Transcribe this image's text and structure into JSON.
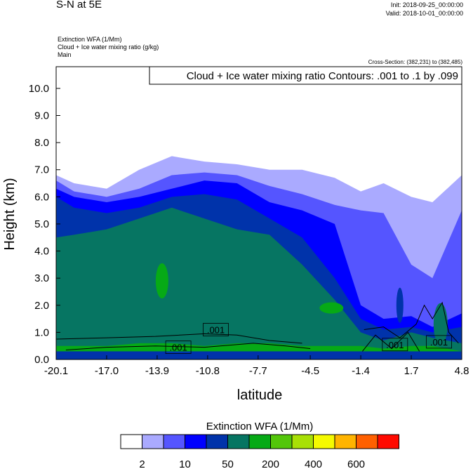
{
  "header": {
    "title": "S-N at 5E",
    "init": "Init: 2018-09-25_00:00:00",
    "valid": "Valid: 2018-10-01_00:00:00",
    "field1": "Extinction WFA   (1/Mm)",
    "field2": "Cloud + Ice water mixing ratio   (g/kg)",
    "field3": "Main",
    "cross_section": "Cross-Section: (382,231) to (382,485)"
  },
  "chart_data": {
    "type": "heatmap",
    "title": "S-N at 5E",
    "contour_label": "Cloud + Ice water mixing ratio Contours: .001 to .1 by .099",
    "xlabel": "latitude",
    "ylabel": "Height (km)",
    "xlim": [
      -20.1,
      4.8
    ],
    "ylim": [
      0,
      10.8
    ],
    "xticks": [
      "-20.1",
      "-17.0",
      "-13.9",
      "-10.8",
      "-7.7",
      "-4.5",
      "-1.4",
      "1.7",
      "4.8"
    ],
    "xtick_values": [
      -20.1,
      -17.0,
      -13.9,
      -10.8,
      -7.7,
      -4.5,
      -1.4,
      1.7,
      4.8
    ],
    "yticks": [
      "0.0",
      "1.0",
      "2.0",
      "3.0",
      "4.0",
      "5.0",
      "6.0",
      "7.0",
      "8.0",
      "9.0",
      "10.0"
    ],
    "ytick_values": [
      0,
      1,
      2,
      3,
      4,
      5,
      6,
      7,
      8,
      9,
      10
    ],
    "sample_latitudes": [
      -20.1,
      -19,
      -17,
      -15,
      -13,
      -11,
      -9,
      -7,
      -5,
      -3,
      -1.4,
      0,
      1.7,
      3,
      4.8
    ],
    "level_tops_km": [
      {
        "level_color": "#aaaaff",
        "tops": [
          6.8,
          6.5,
          6.3,
          7.0,
          7.5,
          7.3,
          7.2,
          7.0,
          7.0,
          6.7,
          6.2,
          6.5,
          6.0,
          5.8,
          6.8
        ]
      },
      {
        "level_color": "#5555ff",
        "tops": [
          6.6,
          6.2,
          6.0,
          6.3,
          6.8,
          6.9,
          6.8,
          6.4,
          6.1,
          5.7,
          5.5,
          5.4,
          3.5,
          3.0,
          5.5
        ]
      },
      {
        "level_color": "#0000ff",
        "tops": [
          6.3,
          6.0,
          5.8,
          6.0,
          6.3,
          6.6,
          6.5,
          5.8,
          5.5,
          5.0,
          2.0,
          1.5,
          1.6,
          1.2,
          1.7
        ]
      },
      {
        "level_color": "#0033aa",
        "tops": [
          6.0,
          5.6,
          5.4,
          5.6,
          6.0,
          6.1,
          5.9,
          5.2,
          4.5,
          3.0,
          1.5,
          1.1,
          1.2,
          1.0,
          1.2
        ]
      },
      {
        "level_color": "#067562",
        "tops": [
          4.5,
          4.6,
          4.8,
          5.2,
          5.6,
          5.2,
          4.8,
          4.6,
          3.5,
          2.2,
          1.0,
          0.7,
          1.0,
          0.8,
          0.6
        ]
      },
      {
        "level_color": "#06aa16",
        "tops": [
          0.5,
          0.5,
          0.5,
          0.6,
          0.6,
          0.5,
          0.6,
          0.6,
          0.5,
          0.5,
          0.5,
          0.4,
          0.5,
          0.5,
          0.3
        ]
      }
    ],
    "contour_labels": [
      ".001",
      ".001",
      ".001",
      ".001"
    ],
    "contour_label_positions": [
      [
        -12.6,
        0.45
      ],
      [
        -10.3,
        1.1
      ],
      [
        0.7,
        0.55
      ],
      [
        3.4,
        0.65
      ]
    ],
    "colorbar": {
      "title": "Extinction WFA  (1/Mm)",
      "colors": [
        "#ffffff",
        "#aaaaff",
        "#5555ff",
        "#0000ff",
        "#0033aa",
        "#067562",
        "#06aa16",
        "#53c60a",
        "#a8e006",
        "#f5fa00",
        "#ffb400",
        "#ff6000",
        "#ff0a00"
      ],
      "labels": [
        "2",
        "10",
        "50",
        "200",
        "400",
        "600"
      ]
    }
  }
}
